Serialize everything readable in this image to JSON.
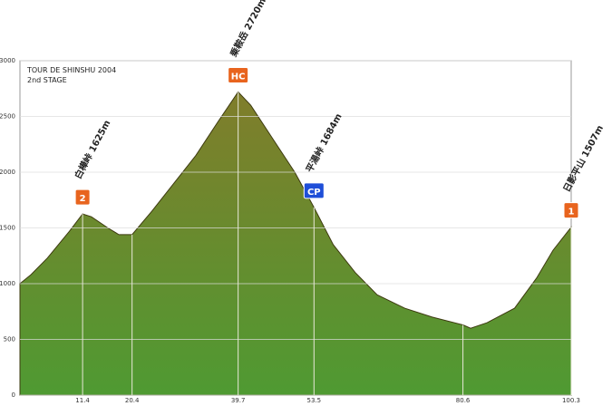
{
  "chart_data": {
    "type": "area",
    "title": "TOUR DE SHINSHU 2004",
    "subtitle": "2nd STAGE",
    "x": [
      0,
      2,
      5,
      9,
      11.4,
      13,
      16,
      18,
      20.4,
      24,
      28,
      32,
      36,
      39.7,
      42,
      46,
      50,
      53.5,
      57,
      61,
      65,
      70,
      75,
      80.6,
      82,
      85,
      90,
      94,
      97,
      100.3
    ],
    "values": [
      1000,
      1080,
      1230,
      1470,
      1625,
      1600,
      1500,
      1440,
      1440,
      1650,
      1900,
      2150,
      2450,
      2720,
      2600,
      2300,
      2000,
      1684,
      1350,
      1100,
      900,
      780,
      700,
      630,
      600,
      650,
      780,
      1050,
      1300,
      1507
    ],
    "color_top": "#857a2a",
    "color_bottom": "#4f9a32",
    "xlim": [
      0,
      100.3
    ],
    "xticks": [
      11.4,
      20.4,
      39.7,
      53.5,
      80.6,
      100.3
    ],
    "ylim": [
      0,
      3000
    ],
    "yticks": [
      0,
      500,
      1000,
      1500,
      2000,
      2500,
      3000
    ],
    "grid": true,
    "annotations": [
      {
        "x": 11.4,
        "text": "白樺峠 1625m",
        "badge": "2",
        "badge_color": "#e8641e"
      },
      {
        "x": 39.7,
        "text": "乗鞍岳 2720m",
        "badge": "HC",
        "badge_color": "#e8641e"
      },
      {
        "x": 53.5,
        "text": "平湯峠 1684m",
        "badge": "CP",
        "badge_color": "#1f4fd8"
      },
      {
        "x": 100.3,
        "text": "日影平山 1507m",
        "badge": "1",
        "badge_color": "#e8641e"
      }
    ]
  }
}
